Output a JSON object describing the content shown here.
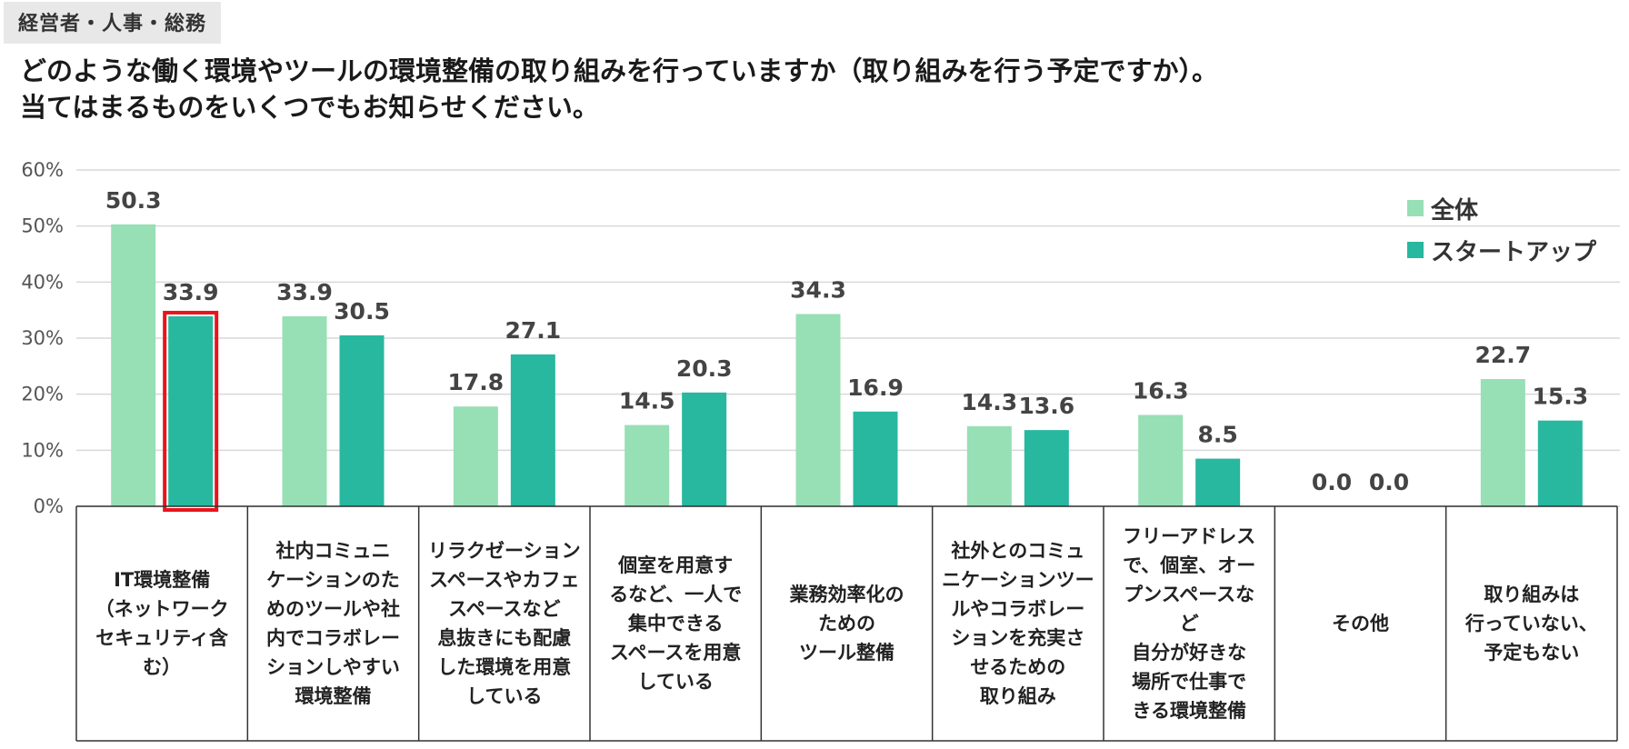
{
  "header": {
    "badge": "経営者・人事・総務",
    "title_line1": "どのような働く環境やツールの環境整備の取り組みを行っていますか（取り組みを行う予定ですか）。",
    "title_line2": "当てはまるものをいくつでもお知らせください。"
  },
  "colors": {
    "all": "#97dfb5",
    "startup": "#27b89f",
    "highlight": "#e8141b",
    "grid": "#d9d9d9"
  },
  "chart_data": {
    "type": "bar",
    "title": "どのような働く環境やツールの環境整備の取り組みを行っていますか（取り組みを行う予定ですか）。",
    "ylim": [
      0,
      60
    ],
    "yticks": [
      "0%",
      "10%",
      "20%",
      "30%",
      "40%",
      "50%",
      "60%"
    ],
    "ytick_values": [
      0,
      10,
      20,
      30,
      40,
      50,
      60
    ],
    "categories": [
      "IT環境整備\n（ネットワーク\nセキュリティ含\nむ）",
      "社内コミュニ\nケーションのた\nめのツールや社\n内でコラボレー\nションしやすい\n環境整備",
      "リラクゼーション\nスペースやカフェ\nスペースなど\n息抜きにも配慮\nした環境を用意\nしている",
      "個室を用意す\nるなど、一人で\n集中できる\nスペースを用意\nしている",
      "業務効率化の\nための\nツール整備",
      "社外とのコミュ\nニケーションツー\nルやコラボレー\nションを充実さ\nせるための\n取り組み",
      "フリーアドレス\nで、個室、オー\nプンスペースな\nど\n自分が好きな\n場所で仕事で\nきる環境整備",
      "その他",
      "取り組みは\n行っていない、\n予定もない"
    ],
    "series": [
      {
        "name": "全体",
        "values": [
          50.3,
          33.9,
          17.8,
          14.5,
          34.3,
          14.3,
          16.3,
          0.0,
          22.7
        ]
      },
      {
        "name": "スタートアップ",
        "values": [
          33.9,
          30.5,
          27.1,
          20.3,
          16.9,
          13.6,
          8.5,
          0.0,
          15.3
        ]
      }
    ],
    "labels": [
      [
        "50.3",
        "33.9",
        "17.8",
        "14.5",
        "34.3",
        "14.3",
        "16.3",
        "0.0",
        "22.7"
      ],
      [
        "33.9",
        "30.5",
        "27.1",
        "20.3",
        "16.9",
        "13.6",
        "8.5",
        "0.0",
        "15.3"
      ]
    ],
    "highlight": {
      "series": 1,
      "category": 0
    },
    "legend_position": "top-right"
  }
}
